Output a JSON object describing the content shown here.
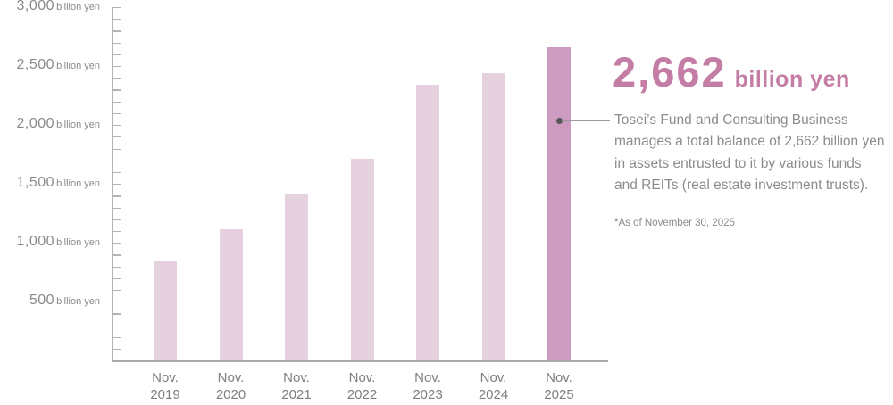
{
  "chart_data": {
    "type": "bar",
    "categories": [
      "Nov. 2019",
      "Nov. 2020",
      "Nov. 2021",
      "Nov. 2022",
      "Nov. 2023",
      "Nov. 2024",
      "Nov. 2025"
    ],
    "values": [
      845,
      1115,
      1415,
      1715,
      2345,
      2440,
      2662
    ],
    "highlight_index": 6,
    "y_axis": {
      "min": 0,
      "max": 3000,
      "label_step": 500,
      "minor_tick_step": 100,
      "tick_labels": [
        "3,000",
        "2,500",
        "2,000",
        "1,500",
        "1,000",
        "500"
      ],
      "unit": "billion yen"
    },
    "grid": "off",
    "legend": "none"
  },
  "callout": {
    "value": "2,662",
    "unit": "billion yen",
    "description": "Tosei’s Fund and Consulting Business manages a total balance of 2,662 billion yen in assets entrusted to it by various funds and REITs (real estate investment trusts).",
    "footnote": "*As of November 30, 2025"
  },
  "colors": {
    "bar": "#e6d1de",
    "bar_highlight": "#cd9bc0",
    "accent_text": "#c47da4",
    "axis_text": "#8a8a8a",
    "body_text": "#8c8c8c",
    "axis_line": "#b3b3b3",
    "callout_dot": "#565656",
    "callout_line": "#9a9a9a"
  }
}
